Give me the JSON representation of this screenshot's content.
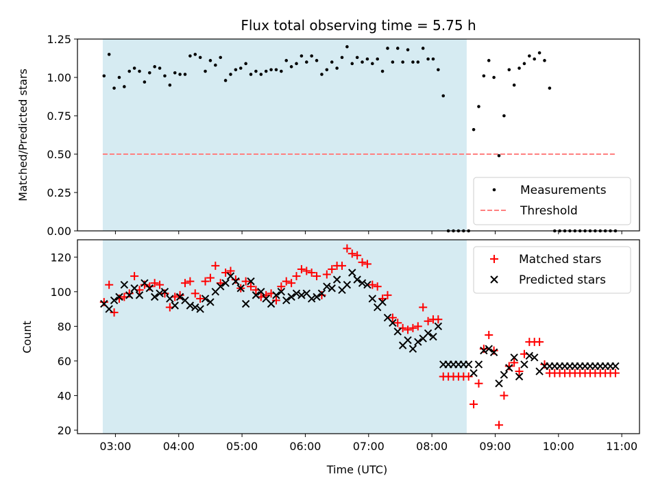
{
  "chart_data": [
    {
      "type": "scatter",
      "title": "Flux total observing time = 5.75 h",
      "xlabel": "",
      "ylabel": "Matched/Predicted stars",
      "xlim": [
        2.4,
        11.28
      ],
      "ylim": [
        0,
        1.25
      ],
      "yticks": [
        0.0,
        0.25,
        0.5,
        0.75,
        1.0,
        1.25
      ],
      "ytick_labels": [
        "0.00",
        "0.25",
        "0.50",
        "0.75",
        "1.00",
        "1.25"
      ],
      "shaded_region": {
        "x0": 2.8,
        "x1": 8.55,
        "color": "#add8e6"
      },
      "threshold": {
        "name": "Threshold",
        "y": 0.5,
        "x0": 2.8,
        "x1": 10.9,
        "color": "#ff7f7f"
      },
      "legend": {
        "location": "lower right",
        "entries": [
          "Measurements",
          "Threshold"
        ]
      },
      "series": [
        {
          "name": "Measurements",
          "color": "#000000",
          "marker": "dot",
          "points": [
            [
              2.82,
              1.01
            ],
            [
              2.9,
              1.15
            ],
            [
              2.98,
              0.93
            ],
            [
              3.06,
              1.0
            ],
            [
              3.14,
              0.94
            ],
            [
              3.22,
              1.04
            ],
            [
              3.3,
              1.06
            ],
            [
              3.38,
              1.04
            ],
            [
              3.46,
              0.97
            ],
            [
              3.54,
              1.03
            ],
            [
              3.62,
              1.07
            ],
            [
              3.7,
              1.06
            ],
            [
              3.78,
              1.01
            ],
            [
              3.86,
              0.95
            ],
            [
              3.94,
              1.03
            ],
            [
              4.02,
              1.02
            ],
            [
              4.1,
              1.02
            ],
            [
              4.18,
              1.14
            ],
            [
              4.26,
              1.15
            ],
            [
              4.34,
              1.13
            ],
            [
              4.42,
              1.04
            ],
            [
              4.5,
              1.11
            ],
            [
              4.58,
              1.08
            ],
            [
              4.66,
              1.13
            ],
            [
              4.74,
              0.98
            ],
            [
              4.82,
              1.02
            ],
            [
              4.9,
              1.05
            ],
            [
              4.98,
              1.06
            ],
            [
              5.06,
              1.09
            ],
            [
              5.14,
              1.02
            ],
            [
              5.22,
              1.04
            ],
            [
              5.3,
              1.02
            ],
            [
              5.38,
              1.04
            ],
            [
              5.46,
              1.05
            ],
            [
              5.54,
              1.05
            ],
            [
              5.62,
              1.04
            ],
            [
              5.7,
              1.11
            ],
            [
              5.78,
              1.07
            ],
            [
              5.86,
              1.09
            ],
            [
              5.94,
              1.14
            ],
            [
              6.02,
              1.1
            ],
            [
              6.1,
              1.14
            ],
            [
              6.18,
              1.11
            ],
            [
              6.26,
              1.02
            ],
            [
              6.34,
              1.05
            ],
            [
              6.42,
              1.1
            ],
            [
              6.5,
              1.06
            ],
            [
              6.58,
              1.13
            ],
            [
              6.66,
              1.2
            ],
            [
              6.74,
              1.09
            ],
            [
              6.82,
              1.13
            ],
            [
              6.9,
              1.1
            ],
            [
              6.98,
              1.12
            ],
            [
              7.06,
              1.09
            ],
            [
              7.14,
              1.12
            ],
            [
              7.22,
              1.04
            ],
            [
              7.3,
              1.19
            ],
            [
              7.38,
              1.1
            ],
            [
              7.46,
              1.19
            ],
            [
              7.54,
              1.1
            ],
            [
              7.62,
              1.18
            ],
            [
              7.7,
              1.1
            ],
            [
              7.78,
              1.1
            ],
            [
              7.86,
              1.19
            ],
            [
              7.94,
              1.12
            ],
            [
              8.02,
              1.12
            ],
            [
              8.1,
              1.05
            ],
            [
              8.18,
              0.88
            ],
            [
              8.26,
              0.0
            ],
            [
              8.34,
              0.0
            ],
            [
              8.42,
              0.0
            ],
            [
              8.5,
              0.0
            ],
            [
              8.58,
              0.0
            ],
            [
              8.66,
              0.66
            ],
            [
              8.74,
              0.81
            ],
            [
              8.82,
              1.01
            ],
            [
              8.9,
              1.11
            ],
            [
              8.98,
              1.0
            ],
            [
              9.06,
              0.49
            ],
            [
              9.14,
              0.75
            ],
            [
              9.22,
              1.05
            ],
            [
              9.3,
              0.95
            ],
            [
              9.38,
              1.06
            ],
            [
              9.46,
              1.09
            ],
            [
              9.54,
              1.14
            ],
            [
              9.62,
              1.12
            ],
            [
              9.7,
              1.16
            ],
            [
              9.78,
              1.11
            ],
            [
              9.86,
              0.93
            ],
            [
              9.94,
              0.0
            ],
            [
              10.02,
              0.0
            ],
            [
              10.1,
              0.0
            ],
            [
              10.18,
              0.0
            ],
            [
              10.26,
              0.0
            ],
            [
              10.34,
              0.0
            ],
            [
              10.42,
              0.0
            ],
            [
              10.5,
              0.0
            ],
            [
              10.58,
              0.0
            ],
            [
              10.66,
              0.0
            ],
            [
              10.74,
              0.0
            ],
            [
              10.82,
              0.0
            ],
            [
              10.9,
              0.0
            ]
          ]
        }
      ]
    },
    {
      "type": "scatter",
      "title": "",
      "xlabel": "Time (UTC)",
      "ylabel": "Count",
      "xlim": [
        2.4,
        11.28
      ],
      "ylim": [
        18,
        130
      ],
      "yticks": [
        20,
        40,
        60,
        80,
        100,
        120
      ],
      "ytick_labels": [
        "20",
        "40",
        "60",
        "80",
        "100",
        "120"
      ],
      "xticks": [
        3,
        4,
        5,
        6,
        7,
        8,
        9,
        10,
        11
      ],
      "xtick_labels": [
        "03:00",
        "04:00",
        "05:00",
        "06:00",
        "07:00",
        "08:00",
        "09:00",
        "10:00",
        "11:00"
      ],
      "shaded_region": {
        "x0": 2.8,
        "x1": 8.55,
        "color": "#add8e6"
      },
      "legend": {
        "location": "upper right",
        "entries": [
          "Matched stars",
          "Predicted stars"
        ]
      },
      "x": [
        2.82,
        2.9,
        2.98,
        3.06,
        3.14,
        3.22,
        3.3,
        3.38,
        3.46,
        3.54,
        3.62,
        3.7,
        3.78,
        3.86,
        3.94,
        4.02,
        4.1,
        4.18,
        4.26,
        4.34,
        4.42,
        4.5,
        4.58,
        4.66,
        4.74,
        4.82,
        4.9,
        4.98,
        5.06,
        5.14,
        5.22,
        5.3,
        5.38,
        5.46,
        5.54,
        5.62,
        5.7,
        5.78,
        5.86,
        5.94,
        6.02,
        6.1,
        6.18,
        6.26,
        6.34,
        6.42,
        6.5,
        6.58,
        6.66,
        6.74,
        6.82,
        6.9,
        6.98,
        7.06,
        7.14,
        7.22,
        7.3,
        7.38,
        7.46,
        7.54,
        7.62,
        7.7,
        7.78,
        7.86,
        7.94,
        8.02,
        8.1,
        8.18,
        8.26,
        8.34,
        8.42,
        8.5,
        8.58,
        8.66,
        8.74,
        8.82,
        8.9,
        8.98,
        9.06,
        9.14,
        9.22,
        9.3,
        9.38,
        9.46,
        9.54,
        9.62,
        9.7,
        9.78,
        9.86,
        9.94,
        10.02,
        10.1,
        10.18,
        10.26,
        10.34,
        10.42,
        10.5,
        10.58,
        10.66,
        10.74,
        10.82,
        10.9
      ],
      "series": [
        {
          "name": "Matched stars",
          "color": "#ff0000",
          "marker": "plus",
          "values": [
            94,
            104,
            88,
            96,
            97,
            99,
            109,
            101,
            104,
            103,
            105,
            104,
            99,
            91,
            97,
            98,
            105,
            106,
            99,
            96,
            106,
            108,
            115,
            105,
            111,
            112,
            107,
            102,
            106,
            103,
            101,
            97,
            98,
            99,
            95,
            103,
            106,
            105,
            109,
            113,
            112,
            111,
            109,
            98,
            110,
            113,
            115,
            115,
            125,
            122,
            121,
            117,
            116,
            104,
            103,
            96,
            98,
            85,
            82,
            79,
            78,
            79,
            80,
            91,
            83,
            84,
            84,
            51,
            51,
            51,
            51,
            51,
            51,
            35,
            47,
            67,
            75,
            66,
            23,
            40,
            57,
            59,
            54,
            64,
            71,
            71,
            71,
            58,
            53,
            53,
            53,
            53,
            53,
            53,
            53,
            53,
            53,
            53,
            53,
            53,
            53,
            53
          ]
        },
        {
          "name": "Predicted stars",
          "color": "#000000",
          "marker": "x",
          "values": [
            93,
            90,
            95,
            97,
            104,
            98,
            102,
            98,
            105,
            102,
            97,
            99,
            100,
            96,
            92,
            97,
            95,
            92,
            91,
            90,
            96,
            94,
            100,
            103,
            105,
            109,
            106,
            102,
            93,
            106,
            98,
            100,
            96,
            93,
            98,
            100,
            95,
            97,
            99,
            98,
            99,
            96,
            97,
            99,
            103,
            102,
            107,
            101,
            104,
            111,
            107,
            105,
            104,
            96,
            91,
            94,
            85,
            82,
            77,
            69,
            72,
            67,
            71,
            73,
            76,
            74,
            80,
            58,
            58,
            58,
            58,
            58,
            58,
            53,
            58,
            66,
            67,
            65,
            47,
            52,
            56,
            62,
            51,
            58,
            63,
            62,
            54,
            57,
            57,
            57,
            57,
            57,
            57,
            57,
            57,
            57,
            57,
            57,
            57,
            57,
            57,
            57
          ]
        }
      ]
    }
  ]
}
